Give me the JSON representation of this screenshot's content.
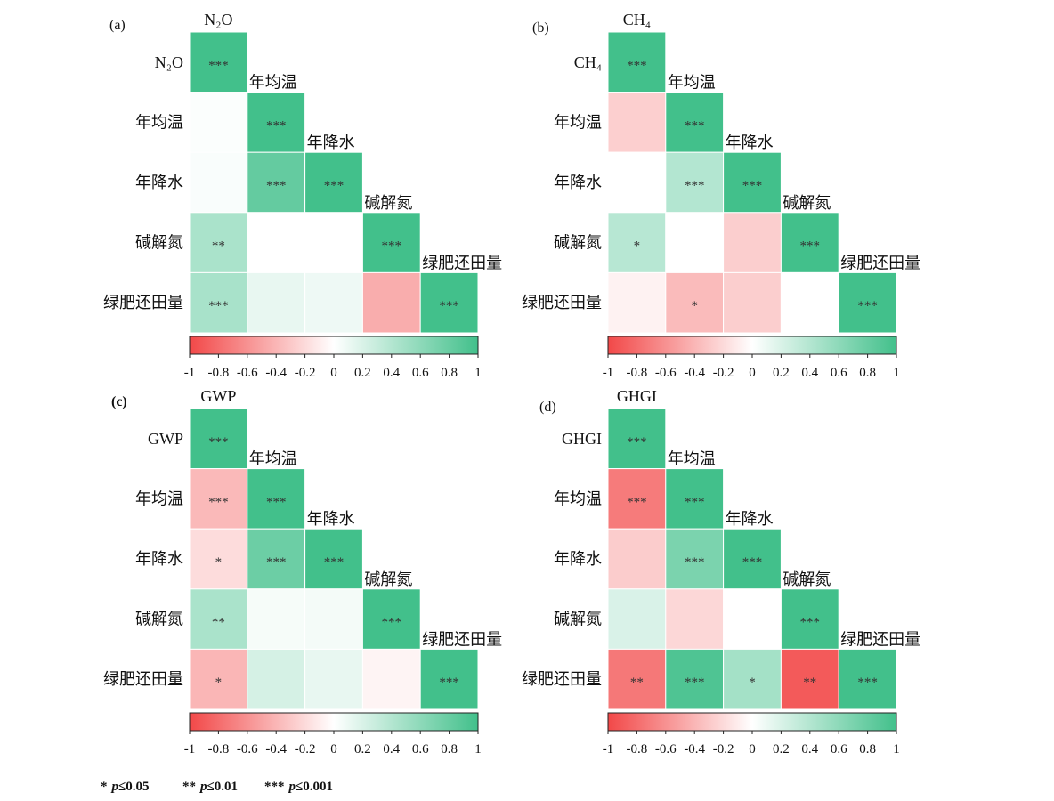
{
  "color_scale": {
    "low": "#f24848",
    "mid": "#ffffff",
    "high": "#42c08b"
  },
  "footnote": [
    {
      "marks": "*",
      "symbol": "p",
      "threshold": "≤0.05"
    },
    {
      "marks": "**",
      "symbol": "p",
      "threshold": "≤0.01"
    },
    {
      "marks": "***",
      "symbol": "p",
      "threshold": "≤0.001"
    }
  ],
  "chart_data": [
    {
      "type": "heatmap",
      "panel_label": "(a)",
      "variables": [
        "N₂O",
        "年均温",
        "年降水",
        "碱解氮",
        "绿肥还田量"
      ],
      "matrix": [
        [
          1
        ],
        [
          0.02,
          1
        ],
        [
          0.03,
          0.82,
          1
        ],
        [
          0.45,
          0,
          0,
          1
        ],
        [
          0.46,
          0.12,
          0.09,
          -0.45,
          1
        ]
      ],
      "significance": [
        [
          "***"
        ],
        [
          "",
          "***"
        ],
        [
          "",
          "***",
          "***"
        ],
        [
          "**",
          "",
          "",
          "***"
        ],
        [
          "***",
          "",
          "",
          "",
          "***"
        ]
      ],
      "colorbar": {
        "range": [
          -1,
          1
        ],
        "ticks": [
          -1,
          -0.8,
          -0.6,
          -0.4,
          -0.2,
          0,
          0.2,
          0.4,
          0.6,
          0.8,
          1
        ]
      }
    },
    {
      "type": "heatmap",
      "panel_label": "(b)",
      "variables": [
        "CH₄",
        "年均温",
        "年降水",
        "碱解氮",
        "绿肥还田量"
      ],
      "matrix": [
        [
          1
        ],
        [
          -0.26,
          1
        ],
        [
          0,
          0.4,
          1
        ],
        [
          0.38,
          0,
          -0.27,
          1
        ],
        [
          -0.07,
          -0.37,
          -0.27,
          0,
          1
        ]
      ],
      "significance": [
        [
          "***"
        ],
        [
          "",
          "***"
        ],
        [
          "",
          "***",
          "***"
        ],
        [
          "*",
          "",
          "",
          "***"
        ],
        [
          "",
          "*",
          "",
          "",
          "***"
        ]
      ],
      "colorbar": {
        "range": [
          -1,
          1
        ],
        "ticks": [
          -1,
          -0.8,
          -0.6,
          -0.4,
          -0.2,
          0,
          0.2,
          0.4,
          0.6,
          0.8,
          1
        ]
      }
    },
    {
      "type": "heatmap",
      "panel_label": "(c)",
      "variables": [
        "GWP",
        "年均温",
        "年降水",
        "碱解氮",
        "绿肥还田量"
      ],
      "matrix": [
        [
          1
        ],
        [
          -0.38,
          1
        ],
        [
          -0.19,
          0.78,
          1
        ],
        [
          0.45,
          0.05,
          0.06,
          1
        ],
        [
          -0.4,
          0.22,
          0.12,
          -0.06,
          1
        ]
      ],
      "significance": [
        [
          "***"
        ],
        [
          "***",
          "***"
        ],
        [
          "*",
          "***",
          "***"
        ],
        [
          "**",
          "",
          "",
          "***"
        ],
        [
          "*",
          "",
          "",
          "",
          "***"
        ]
      ],
      "colorbar": {
        "range": [
          -1,
          1
        ],
        "ticks": [
          -1,
          -0.8,
          -0.6,
          -0.4,
          -0.2,
          0,
          0.2,
          0.4,
          0.6,
          0.8,
          1
        ]
      }
    },
    {
      "type": "heatmap",
      "panel_label": "(d)",
      "variables": [
        "GHGI",
        "年均温",
        "年降水",
        "碱解氮",
        "绿肥还田量"
      ],
      "matrix": [
        [
          1
        ],
        [
          -0.72,
          1
        ],
        [
          -0.28,
          0.7,
          1
        ],
        [
          0.2,
          -0.22,
          0,
          1
        ],
        [
          -0.74,
          0.93,
          0.48,
          -0.9,
          1
        ]
      ],
      "significance": [
        [
          "***"
        ],
        [
          "***",
          "***"
        ],
        [
          "",
          "***",
          "***"
        ],
        [
          "",
          "",
          "",
          "***"
        ],
        [
          "**",
          "***",
          "*",
          "**",
          "***"
        ]
      ],
      "colorbar": {
        "range": [
          -1,
          1
        ],
        "ticks": [
          -1,
          -0.8,
          -0.6,
          -0.4,
          -0.2,
          0,
          0.2,
          0.4,
          0.6,
          0.8,
          1
        ]
      }
    }
  ]
}
